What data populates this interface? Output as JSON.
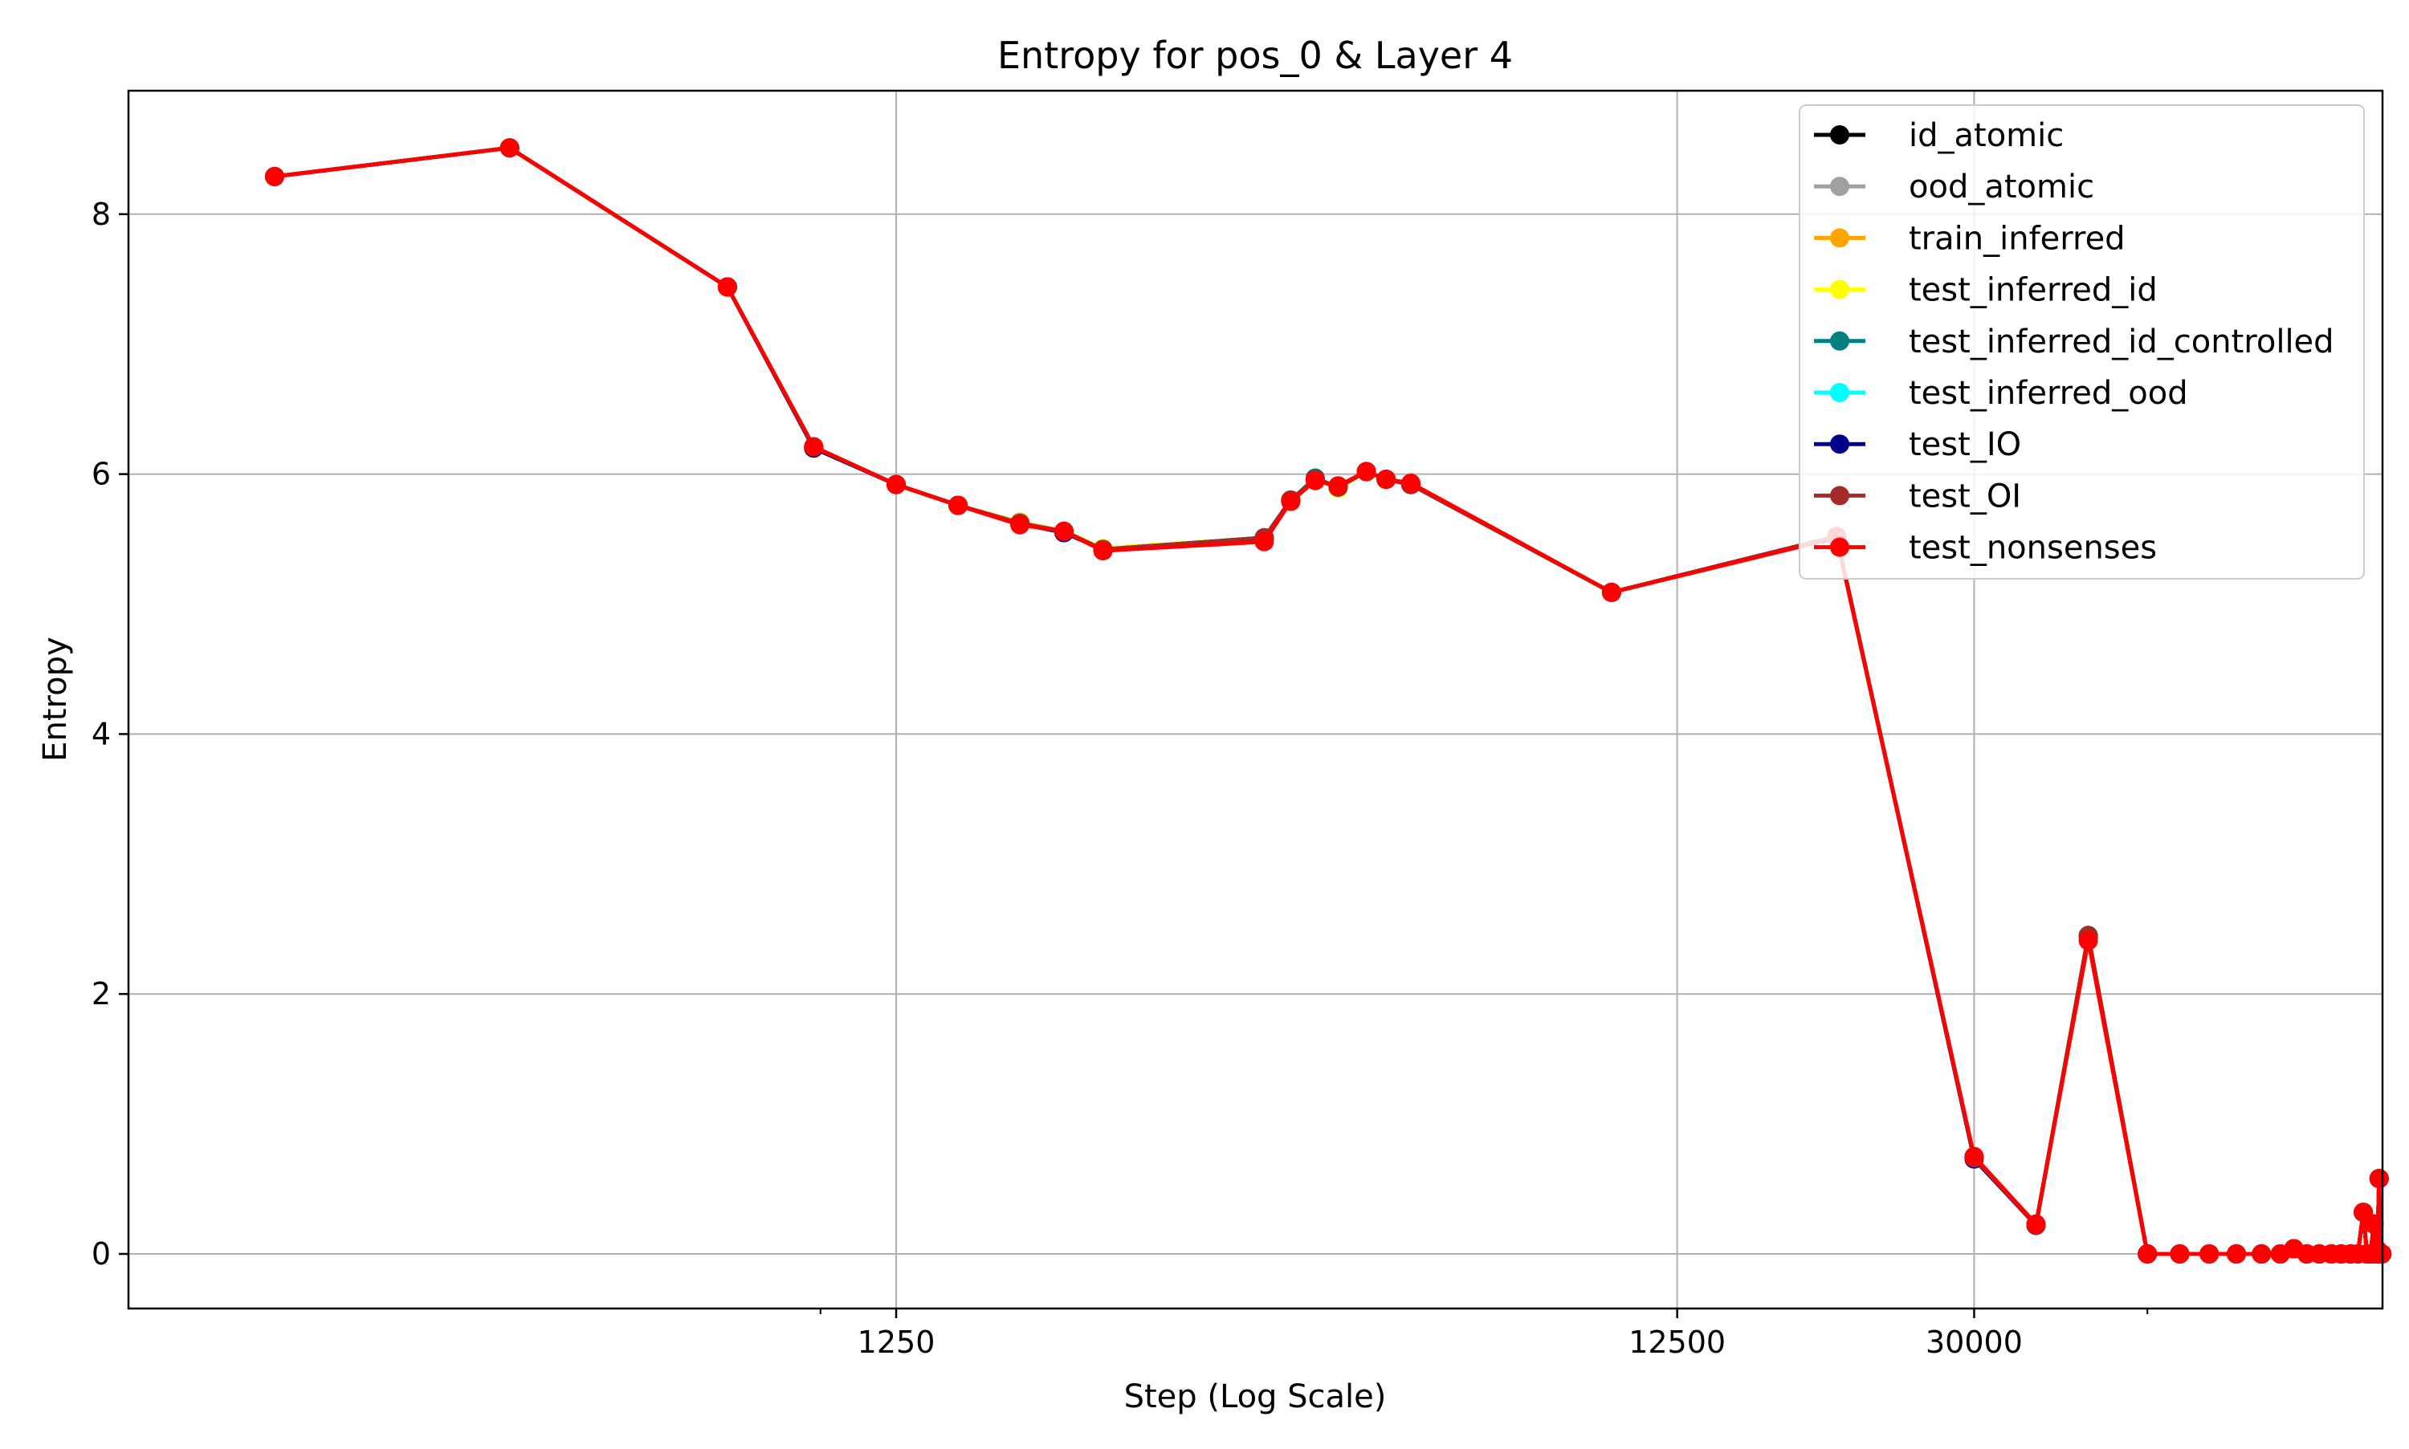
{
  "chart_data": {
    "type": "line",
    "title": "Entropy for pos_0 & Layer 4",
    "xlabel": "Step (Log Scale)",
    "ylabel": "Entropy",
    "x_scale": "log",
    "xlim": [
      130,
      100000
    ],
    "ylim": [
      -0.42,
      8.95
    ],
    "xticks": [
      {
        "value": 1250,
        "label": "1250"
      },
      {
        "value": 12500,
        "label": "12500"
      },
      {
        "value": 30000,
        "label": "30000"
      }
    ],
    "x_minor_ticks": [
      1000,
      50000
    ],
    "yticks": [
      {
        "value": 0,
        "label": "0"
      },
      {
        "value": 2,
        "label": "2"
      },
      {
        "value": 4,
        "label": "4"
      },
      {
        "value": 6,
        "label": "6"
      },
      {
        "value": 8,
        "label": "8"
      }
    ],
    "grid": true,
    "legend_position": "top-right",
    "colors": {
      "id_atomic": "#000000",
      "ood_atomic": "#a0a0a0",
      "train_inferred": "#ffa500",
      "test_inferred_id": "#ffff00",
      "test_inferred_id_controlled": "#008080",
      "test_inferred_ood": "#00ffff",
      "test_IO": "#00008b",
      "test_OI": "#a52a2a",
      "test_nonsenses": "#ff0000"
    },
    "x": [
      200,
      400,
      760,
      980,
      1250,
      1500,
      1800,
      2050,
      2300,
      3700,
      4000,
      4300,
      4600,
      5000,
      5300,
      5700,
      10300,
      20000,
      30000,
      36000,
      42000,
      50000,
      55000,
      60000,
      65000,
      70000,
      74000,
      77000,
      80000,
      83000,
      86000,
      88500,
      91000,
      93000,
      94500,
      95500,
      96500,
      97500,
      98000,
      98500,
      99000,
      99300,
      99500,
      99700,
      99800
    ],
    "series": [
      {
        "name": "id_atomic",
        "values": [
          8.29,
          8.51,
          7.44,
          6.21,
          5.92,
          5.76,
          5.62,
          5.56,
          5.42,
          5.51,
          5.8,
          5.96,
          5.9,
          6.02,
          5.96,
          5.92,
          5.09,
          5.52,
          0.74,
          0.22,
          2.45,
          0.0,
          0.0,
          0.0,
          0.0,
          0.0,
          0.0,
          0.04,
          0.0,
          0.0,
          0.0,
          0.0,
          0.0,
          0.0,
          0.32,
          0.0,
          0.0,
          0.23,
          0.0,
          0.03,
          0.58,
          0.0,
          0.0,
          0.0,
          0.0
        ]
      },
      {
        "name": "ood_atomic",
        "values": [
          8.29,
          8.51,
          7.44,
          6.21,
          5.92,
          5.76,
          5.62,
          5.56,
          5.42,
          5.51,
          5.8,
          5.96,
          5.9,
          6.02,
          5.96,
          5.92,
          5.09,
          5.52,
          0.74,
          0.22,
          2.45,
          0.0,
          0.0,
          0.0,
          0.0,
          0.0,
          0.0,
          0.04,
          0.0,
          0.0,
          0.0,
          0.0,
          0.0,
          0.0,
          0.32,
          0.0,
          0.0,
          0.23,
          0.0,
          0.03,
          0.58,
          0.0,
          0.0,
          0.0,
          0.0
        ]
      },
      {
        "name": "train_inferred",
        "values": [
          8.29,
          8.51,
          7.44,
          6.21,
          5.92,
          5.76,
          5.63,
          5.56,
          5.42,
          5.51,
          5.8,
          5.96,
          5.9,
          6.02,
          5.96,
          5.92,
          5.09,
          5.52,
          0.74,
          0.22,
          2.45,
          0.0,
          0.0,
          0.0,
          0.0,
          0.0,
          0.0,
          0.04,
          0.0,
          0.0,
          0.0,
          0.0,
          0.0,
          0.0,
          0.32,
          0.0,
          0.0,
          0.23,
          0.0,
          0.03,
          0.58,
          0.0,
          0.0,
          0.0,
          0.0
        ]
      },
      {
        "name": "test_inferred_id",
        "values": [
          8.29,
          8.51,
          7.44,
          6.21,
          5.92,
          5.76,
          5.62,
          5.56,
          5.43,
          5.51,
          5.8,
          5.96,
          5.89,
          6.02,
          5.96,
          5.92,
          5.09,
          5.52,
          0.74,
          0.22,
          2.45,
          0.0,
          0.0,
          0.0,
          0.0,
          0.0,
          0.0,
          0.04,
          0.0,
          0.0,
          0.0,
          0.0,
          0.0,
          0.0,
          0.32,
          0.0,
          0.0,
          0.23,
          0.0,
          0.03,
          0.58,
          0.0,
          0.0,
          0.0,
          0.0
        ]
      },
      {
        "name": "test_inferred_id_controlled",
        "values": [
          8.29,
          8.51,
          7.44,
          6.2,
          5.92,
          5.76,
          5.62,
          5.55,
          5.42,
          5.51,
          5.8,
          5.97,
          5.9,
          6.02,
          5.96,
          5.92,
          5.09,
          5.52,
          0.74,
          0.22,
          2.45,
          0.0,
          0.0,
          0.0,
          0.0,
          0.0,
          0.0,
          0.04,
          0.0,
          0.0,
          0.0,
          0.0,
          0.0,
          0.0,
          0.32,
          0.0,
          0.0,
          0.23,
          0.0,
          0.03,
          0.58,
          0.0,
          0.0,
          0.0,
          0.0
        ]
      },
      {
        "name": "test_inferred_ood",
        "values": [
          8.29,
          8.51,
          7.44,
          6.21,
          5.92,
          5.76,
          5.62,
          5.56,
          5.42,
          5.51,
          5.8,
          5.96,
          5.9,
          6.02,
          5.96,
          5.92,
          5.09,
          5.52,
          0.74,
          0.22,
          2.45,
          0.0,
          0.0,
          0.0,
          0.0,
          0.0,
          0.0,
          0.04,
          0.0,
          0.0,
          0.0,
          0.0,
          0.0,
          0.0,
          0.32,
          0.0,
          0.0,
          0.23,
          0.0,
          0.03,
          0.58,
          0.0,
          0.0,
          0.0,
          0.0
        ]
      },
      {
        "name": "test_IO",
        "values": [
          8.29,
          8.51,
          7.44,
          6.2,
          5.92,
          5.76,
          5.62,
          5.55,
          5.42,
          5.51,
          5.8,
          5.96,
          5.9,
          6.02,
          5.96,
          5.92,
          5.09,
          5.52,
          0.73,
          0.22,
          2.44,
          0.0,
          0.0,
          0.0,
          0.0,
          0.0,
          0.0,
          0.04,
          0.0,
          0.0,
          0.0,
          0.0,
          0.0,
          0.0,
          0.32,
          0.0,
          0.0,
          0.23,
          0.0,
          0.03,
          0.58,
          0.0,
          0.0,
          0.0,
          0.0
        ]
      },
      {
        "name": "test_OI",
        "values": [
          8.29,
          8.51,
          7.44,
          6.21,
          5.92,
          5.76,
          5.62,
          5.56,
          5.42,
          5.51,
          5.8,
          5.96,
          5.9,
          6.02,
          5.96,
          5.92,
          5.09,
          5.52,
          0.74,
          0.22,
          2.45,
          0.0,
          0.0,
          0.0,
          0.0,
          0.0,
          0.0,
          0.04,
          0.0,
          0.0,
          0.0,
          0.0,
          0.0,
          0.0,
          0.32,
          0.0,
          0.0,
          0.23,
          0.0,
          0.03,
          0.58,
          0.0,
          0.0,
          0.0,
          0.0
        ]
      },
      {
        "name": "test_nonsenses",
        "values": [
          8.29,
          8.51,
          7.44,
          6.21,
          5.92,
          5.76,
          5.61,
          5.56,
          5.41,
          5.48,
          5.79,
          5.95,
          5.91,
          6.02,
          5.96,
          5.93,
          5.09,
          5.51,
          0.75,
          0.23,
          2.41,
          0.0,
          0.0,
          0.0,
          0.0,
          0.0,
          0.0,
          0.04,
          0.0,
          0.0,
          0.0,
          0.0,
          0.0,
          0.0,
          0.32,
          0.0,
          0.0,
          0.23,
          0.0,
          0.03,
          0.58,
          0.0,
          0.0,
          0.0,
          0.0
        ]
      }
    ]
  }
}
